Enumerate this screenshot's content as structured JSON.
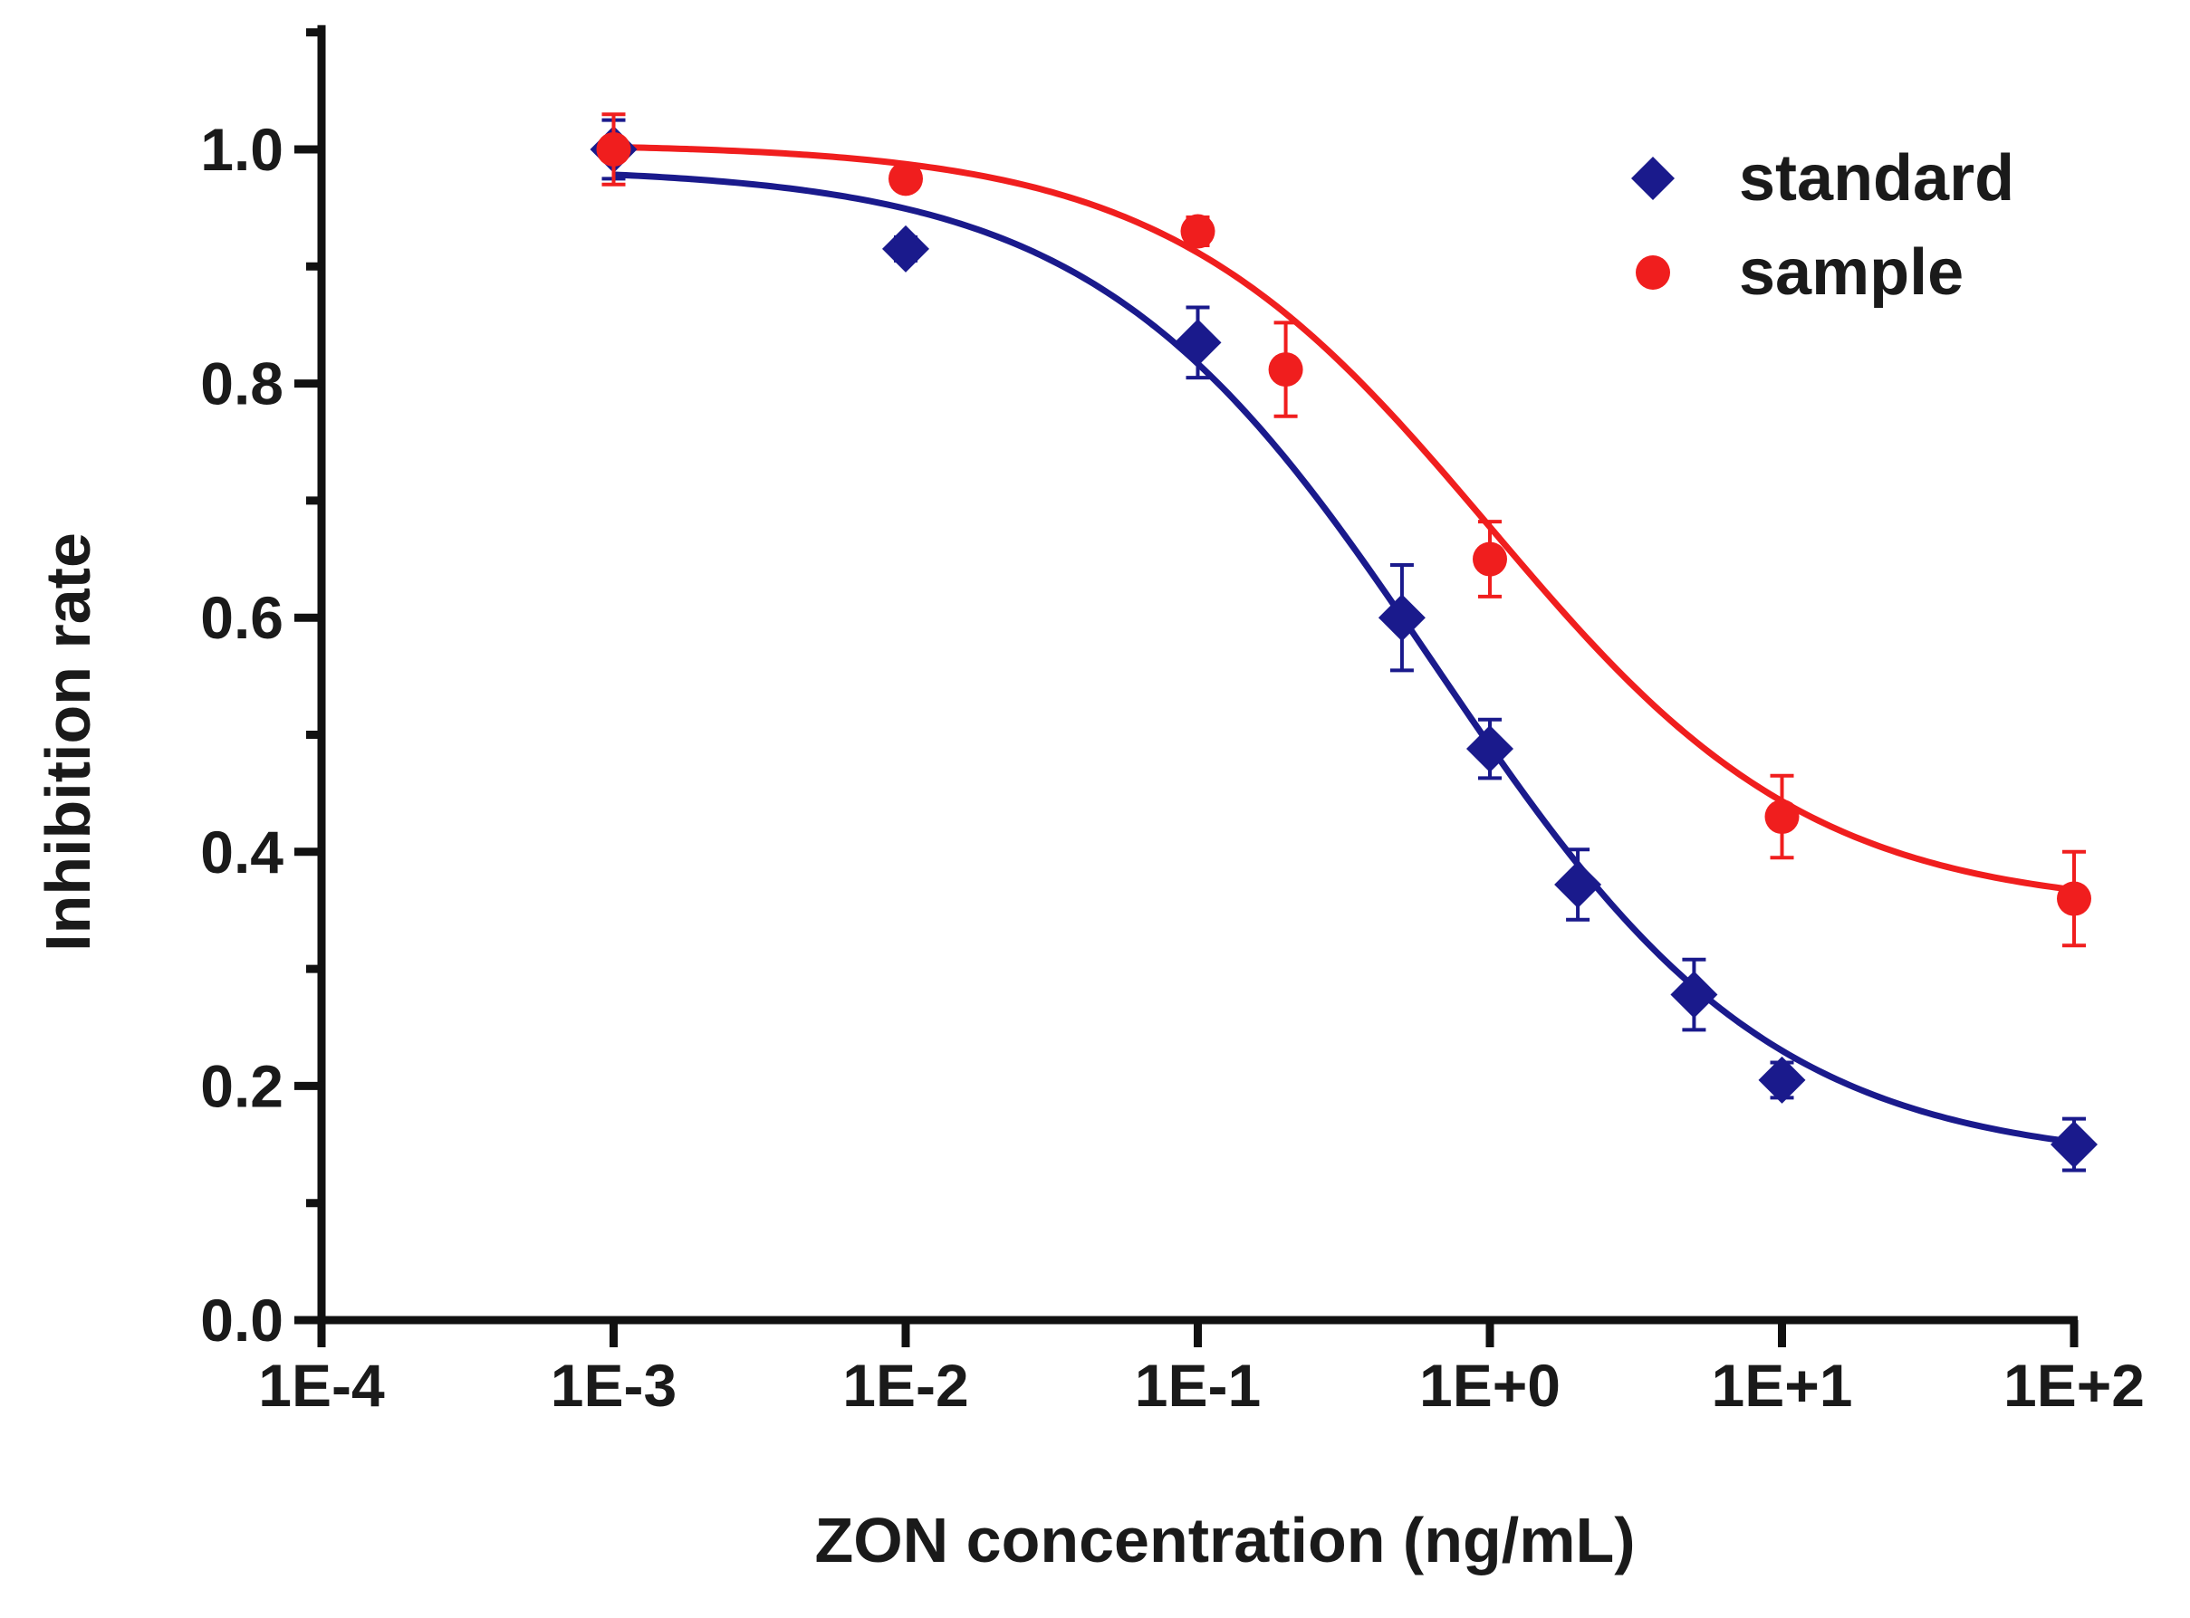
{
  "chart_data": {
    "type": "scatter",
    "title": "",
    "xlabel": "ZON concentration (ng/mL)",
    "ylabel": "Inhibition rate",
    "xscale": "log",
    "xlim": [
      0.0001,
      100
    ],
    "ylim": [
      0.0,
      1.1
    ],
    "x_ticks": [
      0.0001,
      0.001,
      0.01,
      0.1,
      1,
      10,
      100
    ],
    "x_tick_labels": [
      "1E-4",
      "1E-3",
      "1E-2",
      "1E-1",
      "1E+0",
      "1E+1",
      "1E+2"
    ],
    "y_ticks": [
      0.0,
      0.2,
      0.4,
      0.6,
      0.8,
      1.0
    ],
    "y_tick_labels": [
      "0.0",
      "0.2",
      "0.4",
      "0.6",
      "0.8",
      "1.0"
    ],
    "y_minor_ticks": [
      0.1,
      0.3,
      0.5,
      0.7,
      0.9,
      1.1
    ],
    "grid": false,
    "legend_position": "top-right",
    "series": [
      {
        "name": "standard",
        "color": "#1a1a8c",
        "marker": "diamond",
        "x": [
          0.001,
          0.01,
          0.1,
          0.5,
          1,
          2,
          5,
          10,
          100
        ],
        "y": [
          1.0,
          0.915,
          0.835,
          0.6,
          0.488,
          0.372,
          0.278,
          0.205,
          0.15
        ],
        "err": [
          0.025,
          0.01,
          0.03,
          0.045,
          0.025,
          0.03,
          0.03,
          0.015,
          0.022
        ],
        "fit": {
          "bottom": 0.133,
          "top": 0.985,
          "ic50": 0.65,
          "hill": 0.75
        }
      },
      {
        "name": "sample",
        "color": "#f01e1e",
        "marker": "circle",
        "x": [
          0.001,
          0.01,
          0.1,
          0.2,
          1,
          10,
          100
        ],
        "y": [
          1.0,
          0.975,
          0.93,
          0.812,
          0.65,
          0.43,
          0.36
        ],
        "err": [
          0.03,
          0.008,
          0.012,
          0.04,
          0.032,
          0.035,
          0.04
        ],
        "fit": {
          "bottom": 0.35,
          "top": 1.005,
          "ic50": 1.0,
          "hill": 0.78
        }
      }
    ]
  }
}
